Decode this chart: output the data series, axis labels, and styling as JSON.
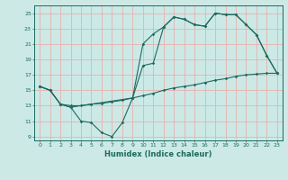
{
  "xlabel": "Humidex (Indice chaleur)",
  "xlim": [
    -0.5,
    23.5
  ],
  "ylim": [
    8.5,
    26
  ],
  "yticks": [
    9,
    11,
    13,
    15,
    17,
    19,
    21,
    23,
    25
  ],
  "xticks": [
    0,
    1,
    2,
    3,
    4,
    5,
    6,
    7,
    8,
    9,
    10,
    11,
    12,
    13,
    14,
    15,
    16,
    17,
    18,
    19,
    20,
    21,
    22,
    23
  ],
  "background_color": "#cce9e6",
  "grid_color": "#e8b0b0",
  "line_color": "#1a6b60",
  "line1_x": [
    0,
    1,
    2,
    3,
    4,
    5,
    6,
    7,
    8,
    9,
    10,
    11,
    12,
    13,
    14,
    15,
    16,
    17,
    18,
    19,
    20,
    21,
    22,
    23
  ],
  "line1_y": [
    15.5,
    15.0,
    13.2,
    12.8,
    11.0,
    10.8,
    9.5,
    9.0,
    10.8,
    14.0,
    21.0,
    22.3,
    23.2,
    24.5,
    24.2,
    23.5,
    23.3,
    25.0,
    24.8,
    24.8,
    23.5,
    22.2,
    19.5,
    17.2
  ],
  "line2_x": [
    0,
    1,
    2,
    3,
    4,
    5,
    6,
    7,
    8,
    9,
    10,
    11,
    12,
    13,
    14,
    15,
    16,
    17,
    18,
    19,
    20,
    21,
    22,
    23
  ],
  "line2_y": [
    15.5,
    15.0,
    13.2,
    13.0,
    13.0,
    13.2,
    13.3,
    13.5,
    13.7,
    14.0,
    14.3,
    14.6,
    15.0,
    15.3,
    15.5,
    15.7,
    16.0,
    16.3,
    16.5,
    16.8,
    17.0,
    17.1,
    17.2,
    17.2
  ],
  "line3_x": [
    0,
    1,
    2,
    3,
    9,
    10,
    11,
    12,
    13,
    14,
    15,
    16,
    17,
    18,
    19,
    20,
    21,
    22,
    23
  ],
  "line3_y": [
    15.5,
    15.0,
    13.2,
    12.8,
    14.0,
    18.2,
    18.5,
    23.2,
    24.5,
    24.2,
    23.5,
    23.3,
    25.0,
    24.8,
    24.8,
    23.5,
    22.2,
    19.5,
    17.2
  ]
}
